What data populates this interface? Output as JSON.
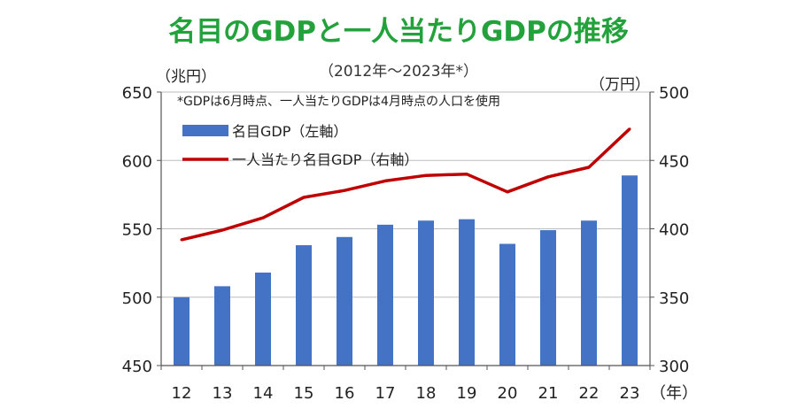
{
  "chart_data": {
    "type": "bar+line",
    "title": "名目のGDPと一人当たりGDPの推移",
    "subtitle": "（2012年～2023年*）",
    "note": "*GDPは6月時点、一人当たりGDPは4月時点の人口を使用",
    "categories": [
      "12",
      "13",
      "14",
      "15",
      "16",
      "17",
      "18",
      "19",
      "20",
      "21",
      "22",
      "23"
    ],
    "x_unit": "（年）",
    "y_left": {
      "unit": "（兆円）",
      "lim": [
        450,
        650
      ],
      "ticks": [
        450,
        500,
        550,
        600,
        650
      ]
    },
    "y_right": {
      "unit": "（万円）",
      "lim": [
        300,
        500
      ],
      "ticks": [
        300,
        350,
        400,
        450,
        500
      ]
    },
    "series": [
      {
        "name": "名目GDP（左軸）",
        "type": "bar",
        "axis": "left",
        "color": "#4472c4",
        "values": [
          500,
          508,
          518,
          538,
          544,
          553,
          556,
          557,
          539,
          549,
          556,
          589
        ]
      },
      {
        "name": "一人当たり名目GDP（右軸）",
        "type": "line",
        "axis": "right",
        "color": "#c00000",
        "values": [
          392,
          399,
          408,
          423,
          428,
          435,
          439,
          440,
          427,
          438,
          445,
          473
        ]
      }
    ],
    "grid": true,
    "legend_position": "top-left"
  }
}
